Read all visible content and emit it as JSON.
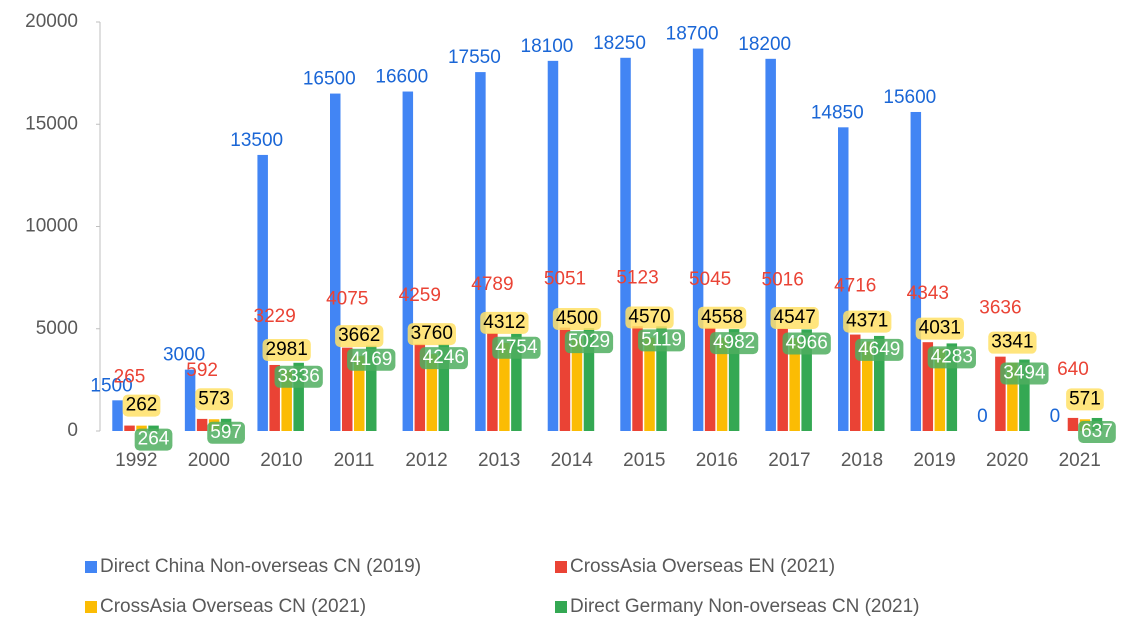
{
  "chart_data": {
    "type": "bar",
    "categories": [
      "1992",
      "2000",
      "2010",
      "2011",
      "2012",
      "2013",
      "2014",
      "2015",
      "2016",
      "2017",
      "2018",
      "2019",
      "2020",
      "2021"
    ],
    "series": [
      {
        "name": "Direct China Non-overseas CN (2019)",
        "color": "#4285f4",
        "values": [
          1500,
          3000,
          13500,
          16500,
          16600,
          17550,
          18100,
          18250,
          18700,
          18200,
          14850,
          15600,
          0,
          0
        ]
      },
      {
        "name": "CrossAsia Overseas EN (2021)",
        "color": "#ea4335",
        "values": [
          265,
          592,
          3229,
          4075,
          4259,
          4789,
          5051,
          5123,
          5045,
          5016,
          4716,
          4343,
          3636,
          640
        ]
      },
      {
        "name": "CrossAsia Overseas CN (2021)",
        "color": "#fbbc04",
        "values": [
          262,
          573,
          2981,
          3662,
          3760,
          4312,
          4500,
          4570,
          4558,
          4547,
          4371,
          4031,
          3341,
          571
        ]
      },
      {
        "name": "Direct Germany Non-overseas CN (2021)",
        "color": "#34a853",
        "values": [
          264,
          597,
          3336,
          4169,
          4246,
          4754,
          5029,
          5119,
          4982,
          4966,
          4649,
          4283,
          3494,
          637
        ]
      }
    ],
    "ylim": [
      0,
      20000
    ],
    "yticks": [
      0,
      5000,
      10000,
      15000,
      20000
    ],
    "grid": false
  }
}
